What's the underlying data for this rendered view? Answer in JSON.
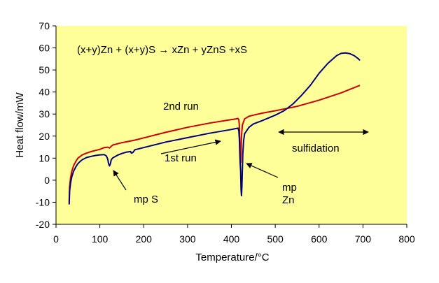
{
  "chart_data": {
    "type": "line",
    "title": "",
    "xlabel": "Temperature/°C",
    "ylabel": "Heat flow/mW",
    "xlim": [
      0,
      800
    ],
    "ylim": [
      -20,
      70
    ],
    "x_ticks": [
      0,
      100,
      200,
      300,
      400,
      500,
      600,
      700,
      800
    ],
    "y_ticks": [
      -20,
      -10,
      0,
      10,
      20,
      30,
      40,
      50,
      60,
      70
    ],
    "grid": false,
    "legend": null,
    "plot_background": "#ffff99",
    "series": [
      {
        "color": "#cc0000",
        "x": [
          30,
          31,
          33,
          36,
          40,
          45,
          50,
          60,
          70,
          80,
          90,
          100,
          110,
          118,
          122,
          126,
          130,
          140,
          150,
          160,
          180,
          200,
          250,
          300,
          350,
          400,
          410,
          415,
          417,
          418,
          419,
          420,
          421,
          422,
          423,
          425,
          430,
          440,
          450,
          470,
          500,
          550,
          600,
          650,
          693
        ],
        "y": [
          -10,
          -3,
          1,
          4,
          6.5,
          8.5,
          10,
          11.5,
          12.3,
          13,
          13.5,
          14,
          14.8,
          15,
          14.6,
          15.4,
          16,
          16.5,
          17,
          17.4,
          18.2,
          19.2,
          21.7,
          24,
          25.9,
          27.5,
          27.8,
          28,
          27.5,
          25,
          19,
          12,
          8,
          13,
          20,
          25,
          27.8,
          29,
          29.5,
          30.4,
          31.5,
          33.5,
          36.3,
          39.6,
          43
        ]
      },
      {
        "color": "#000080",
        "x": [
          30,
          31,
          33,
          36,
          40,
          45,
          50,
          55,
          60,
          70,
          80,
          90,
          100,
          110,
          115,
          118,
          120,
          122,
          124,
          126,
          130,
          140,
          150,
          160,
          170,
          172,
          175,
          180,
          200,
          250,
          300,
          350,
          400,
          410,
          415,
          417,
          418,
          419,
          420,
          421,
          422,
          423,
          424,
          425,
          426,
          428,
          430,
          440,
          450,
          470,
          500,
          520,
          540,
          560,
          580,
          600,
          620,
          640,
          650,
          660,
          670,
          680,
          690,
          693
        ],
        "y": [
          -11,
          -5,
          -1.5,
          1.5,
          4,
          6,
          7.5,
          8.5,
          9.3,
          10.3,
          10.8,
          11.2,
          11.5,
          11.6,
          11,
          9.5,
          7.5,
          6.5,
          7.5,
          9.3,
          10.2,
          11.3,
          12.1,
          12.7,
          13,
          12.3,
          12.5,
          13.8,
          14.8,
          17.3,
          19.3,
          21.3,
          23,
          23.4,
          23.6,
          22.5,
          19,
          13,
          8,
          4,
          -4,
          -7,
          -3,
          5,
          12,
          18,
          21,
          24,
          25.5,
          27,
          29.5,
          31.5,
          34.5,
          38.5,
          43,
          48.5,
          53,
          56.5,
          57.5,
          57.7,
          57.4,
          56.5,
          55,
          54.3
        ]
      }
    ],
    "annotations": {
      "equation": "(x+y)Zn + (x+y)S → xZn + yZnS +xS",
      "second_run": "2nd run",
      "first_run": "1st run",
      "sulfidation": "sulfidation",
      "mp_s": "mp S",
      "mp_zn_line1": "mp",
      "mp_zn_line2": "Zn"
    }
  }
}
